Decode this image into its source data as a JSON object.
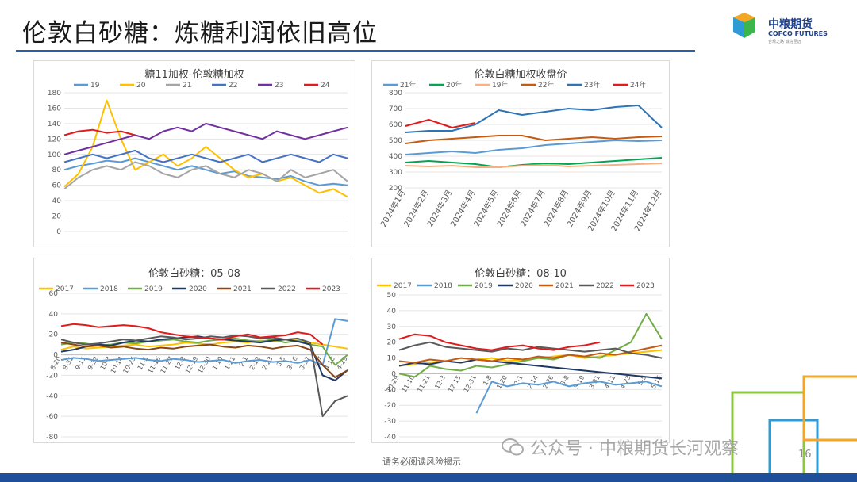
{
  "slide": {
    "title": "伦敦白砂糖：炼糖利润依旧高位",
    "footer": "请务必阅读风险揭示",
    "page_number": "16",
    "watermark": "公众号 · 中粮期货长河观察"
  },
  "logo": {
    "cn": "中粮期货",
    "en": "COFCO FUTURES",
    "sub": "合规之路 诚信至远"
  },
  "colors": {
    "accent": "#1f4e9a"
  },
  "chart_data": [
    {
      "id": "c1",
      "type": "line",
      "title": "糖11加权-伦敦糖加权",
      "ylim": [
        0,
        180
      ],
      "yticks": [
        0,
        20,
        40,
        60,
        80,
        100,
        120,
        140,
        160,
        180
      ],
      "x": [
        0,
        1,
        2,
        3,
        4,
        5,
        6,
        7,
        8,
        9,
        10,
        11,
        12,
        13,
        14,
        15,
        16,
        17,
        18,
        19,
        20
      ],
      "series": [
        {
          "name": "19",
          "color": "#5b9bd5",
          "values": [
            80,
            85,
            88,
            92,
            90,
            95,
            90,
            85,
            80,
            85,
            80,
            75,
            78,
            72,
            70,
            68,
            72,
            65,
            60,
            62,
            60
          ]
        },
        {
          "name": "20",
          "color": "#ffc000",
          "values": [
            58,
            75,
            110,
            170,
            120,
            80,
            90,
            100,
            85,
            95,
            110,
            95,
            80,
            70,
            75,
            65,
            70,
            60,
            50,
            55,
            45
          ]
        },
        {
          "name": "21",
          "color": "#a5a5a5",
          "values": [
            55,
            70,
            80,
            85,
            80,
            90,
            85,
            75,
            70,
            80,
            85,
            75,
            70,
            80,
            75,
            65,
            80,
            70,
            75,
            80,
            65
          ]
        },
        {
          "name": "22",
          "color": "#4472c4",
          "values": [
            90,
            95,
            100,
            95,
            100,
            105,
            95,
            90,
            95,
            100,
            95,
            90,
            95,
            100,
            90,
            95,
            100,
            95,
            90,
            100,
            95
          ]
        },
        {
          "name": "23",
          "color": "#7030a0",
          "values": [
            100,
            105,
            110,
            115,
            120,
            125,
            120,
            130,
            135,
            130,
            140,
            135,
            130,
            125,
            120,
            130,
            125,
            120,
            125,
            130,
            135
          ]
        },
        {
          "name": "24",
          "color": "#e31a1c",
          "values": [
            125,
            130,
            132,
            128,
            130,
            125,
            null,
            null,
            null,
            null,
            null,
            null,
            null,
            null,
            null,
            null,
            null,
            null,
            null,
            null,
            null
          ]
        }
      ]
    },
    {
      "id": "c2",
      "type": "line",
      "title": "伦敦白糖加权收盘价",
      "ylim": [
        200,
        800
      ],
      "yticks": [
        200,
        300,
        400,
        500,
        600,
        700,
        800
      ],
      "categories": [
        "2024年1月",
        "2024年2月",
        "2024年3月",
        "2024年4月",
        "2024年5月",
        "2024年6月",
        "2024年7月",
        "2024年8月",
        "2024年9月",
        "2024年10月",
        "2024年11月",
        "2024年12月"
      ],
      "series": [
        {
          "name": "21年",
          "color": "#5b9bd5",
          "values": [
            410,
            420,
            430,
            420,
            440,
            450,
            470,
            480,
            490,
            500,
            495,
            500
          ]
        },
        {
          "name": "20年",
          "color": "#00a651",
          "values": [
            360,
            370,
            360,
            350,
            330,
            345,
            355,
            350,
            360,
            370,
            380,
            390
          ]
        },
        {
          "name": "19年",
          "color": "#f4b183",
          "values": [
            340,
            335,
            340,
            330,
            330,
            340,
            345,
            335,
            340,
            345,
            350,
            355
          ]
        },
        {
          "name": "22年",
          "color": "#c55a11",
          "values": [
            480,
            500,
            510,
            520,
            530,
            530,
            500,
            510,
            520,
            510,
            520,
            525
          ]
        },
        {
          "name": "23年",
          "color": "#2e75b6",
          "values": [
            550,
            560,
            560,
            600,
            690,
            660,
            680,
            700,
            690,
            710,
            720,
            580
          ]
        },
        {
          "name": "24年",
          "color": "#e31a1c",
          "values": [
            590,
            630,
            580,
            610,
            null,
            null,
            null,
            null,
            null,
            null,
            null,
            null
          ]
        }
      ]
    },
    {
      "id": "c3",
      "type": "line",
      "title": "伦敦白砂糖：05-08",
      "ylim": [
        -80,
        60
      ],
      "yticks": [
        -80,
        -60,
        -40,
        -20,
        0,
        20,
        40,
        60
      ],
      "categories": [
        "8-20",
        "8-31",
        "9-11",
        "9-22",
        "10-3",
        "10-14",
        "10-25",
        "11-5",
        "11-16",
        "11-27",
        "12-8",
        "12-19",
        "12-30",
        "1-10",
        "1-21",
        "2-1",
        "2-12",
        "2-23",
        "3-5",
        "3-16",
        "3-27",
        "4-7",
        "4-18",
        "4-29"
      ],
      "series": [
        {
          "name": "2017",
          "color": "#ffc000",
          "values": [
            5,
            8,
            6,
            7,
            8,
            9,
            10,
            8,
            9,
            10,
            12,
            11,
            10,
            12,
            13,
            12,
            14,
            13,
            15,
            14,
            12,
            10,
            8,
            6
          ]
        },
        {
          "name": "2018",
          "color": "#5b9bd5",
          "values": [
            -5,
            -3,
            -4,
            -6,
            -5,
            -4,
            -3,
            -5,
            -6,
            -4,
            -5,
            -7,
            -6,
            -5,
            -8,
            -6,
            -5,
            -7,
            -6,
            -8,
            -5,
            -10,
            35,
            33
          ]
        },
        {
          "name": "2019",
          "color": "#70ad47",
          "values": [
            10,
            12,
            11,
            9,
            10,
            12,
            11,
            13,
            14,
            15,
            13,
            12,
            14,
            15,
            16,
            14,
            13,
            15,
            12,
            14,
            10,
            8,
            -10,
            0
          ]
        },
        {
          "name": "2020",
          "color": "#1f3864",
          "values": [
            3,
            5,
            8,
            10,
            9,
            12,
            14,
            13,
            15,
            16,
            17,
            18,
            16,
            15,
            14,
            13,
            12,
            14,
            15,
            13,
            10,
            -20,
            -25,
            -15
          ]
        },
        {
          "name": "2021",
          "color": "#8b4513",
          "values": [
            12,
            10,
            8,
            9,
            7,
            8,
            6,
            5,
            7,
            6,
            8,
            9,
            10,
            8,
            7,
            9,
            8,
            6,
            8,
            9,
            5,
            -10,
            -22,
            -15
          ]
        },
        {
          "name": "2022",
          "color": "#595959",
          "values": [
            15,
            12,
            10,
            11,
            13,
            15,
            14,
            16,
            18,
            17,
            15,
            16,
            18,
            17,
            19,
            18,
            16,
            17,
            15,
            16,
            12,
            -60,
            -45,
            -40
          ]
        },
        {
          "name": "2023",
          "color": "#e31a1c",
          "values": [
            28,
            30,
            29,
            27,
            28,
            29,
            28,
            26,
            22,
            20,
            18,
            17,
            16,
            15,
            18,
            20,
            17,
            18,
            19,
            22,
            20,
            10,
            null,
            null
          ]
        }
      ]
    },
    {
      "id": "c4",
      "type": "line",
      "title": "伦敦白砂糖：08-10",
      "ylim": [
        -40,
        50
      ],
      "yticks": [
        -40,
        -30,
        -20,
        -10,
        0,
        10,
        20,
        30,
        40,
        50
      ],
      "categories": [
        "10-29",
        "11-10",
        "11-21",
        "12-3",
        "12-15",
        "12-31",
        "1-8",
        "1-20",
        "2-1",
        "2-14",
        "2-26",
        "3-8",
        "3-19",
        "3-31",
        "4-11",
        "4-23",
        "5-5",
        "5-16"
      ],
      "series": [
        {
          "name": "2017",
          "color": "#ffc000",
          "values": [
            5,
            6,
            7,
            8,
            7,
            9,
            10,
            8,
            9,
            10,
            11,
            12,
            10,
            11,
            12,
            13,
            14,
            15
          ]
        },
        {
          "name": "2018",
          "color": "#5b9bd5",
          "values": [
            null,
            null,
            null,
            null,
            null,
            -25,
            -5,
            -8,
            -6,
            -7,
            -5,
            -8,
            -6,
            -5,
            -7,
            -6,
            -5,
            -8
          ]
        },
        {
          "name": "2019",
          "color": "#70ad47",
          "values": [
            0,
            -2,
            5,
            3,
            2,
            5,
            4,
            6,
            8,
            10,
            9,
            12,
            11,
            10,
            15,
            20,
            38,
            22
          ]
        },
        {
          "name": "2020",
          "color": "#1f3864",
          "values": [
            5,
            7,
            6,
            8,
            7,
            9,
            8,
            7,
            6,
            5,
            4,
            3,
            2,
            1,
            0,
            -1,
            -2,
            -3
          ]
        },
        {
          "name": "2021",
          "color": "#c55a11",
          "values": [
            8,
            7,
            9,
            8,
            10,
            9,
            8,
            10,
            9,
            11,
            10,
            12,
            11,
            13,
            12,
            14,
            16,
            18
          ]
        },
        {
          "name": "2022",
          "color": "#595959",
          "values": [
            15,
            18,
            20,
            17,
            16,
            15,
            14,
            16,
            15,
            17,
            16,
            15,
            14,
            15,
            16,
            13,
            12,
            10
          ]
        },
        {
          "name": "2023",
          "color": "#e31a1c",
          "values": [
            22,
            25,
            24,
            20,
            18,
            16,
            15,
            17,
            18,
            16,
            15,
            17,
            18,
            20,
            null,
            null,
            null,
            null
          ]
        }
      ]
    }
  ]
}
